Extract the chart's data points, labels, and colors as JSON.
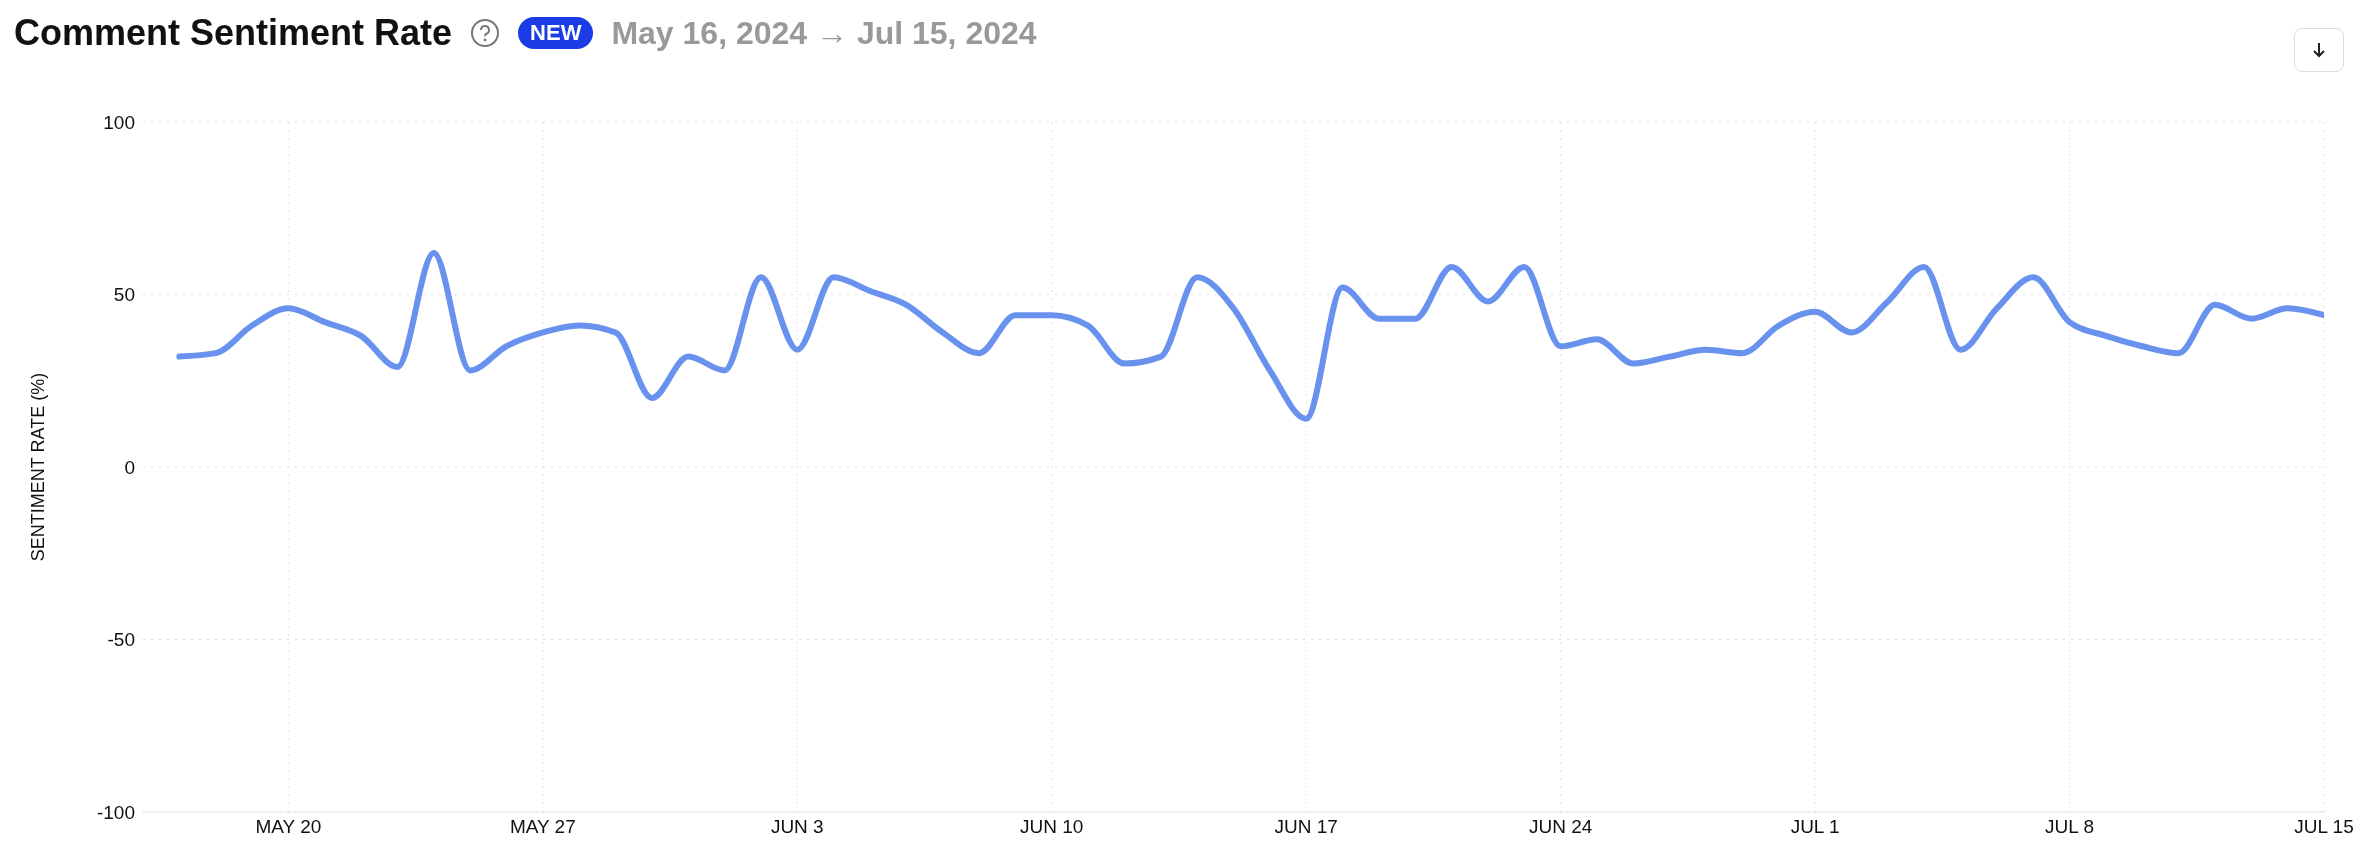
{
  "chart_data": {
    "type": "line",
    "title": "Comment Sentiment Rate",
    "subtitle": "May 16, 2024 → Jul 15, 2024",
    "annotations": [
      "NEW"
    ],
    "ylabel": "SENTIMENT RATE (%)",
    "x": [
      "2024-05-17",
      "2024-05-18",
      "2024-05-19",
      "2024-05-20",
      "2024-05-21",
      "2024-05-22",
      "2024-05-23",
      "2024-05-24",
      "2024-05-25",
      "2024-05-26",
      "2024-05-27",
      "2024-05-28",
      "2024-05-29",
      "2024-05-30",
      "2024-05-31",
      "2024-06-01",
      "2024-06-02",
      "2024-06-03",
      "2024-06-04",
      "2024-06-05",
      "2024-06-06",
      "2024-06-07",
      "2024-06-08",
      "2024-06-09",
      "2024-06-10",
      "2024-06-11",
      "2024-06-12",
      "2024-06-13",
      "2024-06-14",
      "2024-06-15",
      "2024-06-16",
      "2024-06-17",
      "2024-06-18",
      "2024-06-19",
      "2024-06-20",
      "2024-06-21",
      "2024-06-22",
      "2024-06-23",
      "2024-06-24",
      "2024-06-25",
      "2024-06-26",
      "2024-06-27",
      "2024-06-28",
      "2024-06-29",
      "2024-06-30",
      "2024-07-01",
      "2024-07-02",
      "2024-07-03",
      "2024-07-04",
      "2024-07-05",
      "2024-07-06",
      "2024-07-07",
      "2024-07-08",
      "2024-07-09",
      "2024-07-10",
      "2024-07-11",
      "2024-07-12",
      "2024-07-13",
      "2024-07-14",
      "2024-07-15"
    ],
    "series": [
      {
        "color": "#6892ee",
        "values": [
          32,
          33,
          41,
          46,
          42,
          38,
          29,
          62,
          28,
          35,
          39,
          41,
          39,
          20,
          32,
          28,
          55,
          34,
          55,
          51,
          47,
          39,
          33,
          44,
          44,
          41,
          30,
          32,
          55,
          46,
          28,
          14,
          52,
          43,
          43,
          58,
          48,
          58,
          35,
          37,
          30,
          32,
          34,
          33,
          41,
          45,
          39,
          48,
          58,
          34,
          46,
          55,
          42,
          38,
          35,
          33,
          47,
          43,
          46,
          44
        ]
      }
    ],
    "xlim": [
      "2024-05-16",
      "2024-07-15"
    ],
    "xticks": [
      {
        "value": "2024-05-20",
        "label": "MAY 20"
      },
      {
        "value": "2024-05-27",
        "label": "MAY 27"
      },
      {
        "value": "2024-06-03",
        "label": "JUN 3"
      },
      {
        "value": "2024-06-10",
        "label": "JUN 10"
      },
      {
        "value": "2024-06-17",
        "label": "JUN 17"
      },
      {
        "value": "2024-06-24",
        "label": "JUN 24"
      },
      {
        "value": "2024-07-01",
        "label": "JUL 1"
      },
      {
        "value": "2024-07-08",
        "label": "JUL 8"
      },
      {
        "value": "2024-07-15",
        "label": "JUL 15"
      }
    ],
    "ylim": [
      -100,
      100
    ],
    "yticks": [
      -100,
      -50,
      0,
      50,
      100
    ],
    "grid": true,
    "legend": false,
    "marker": "none",
    "line_style": "solid"
  }
}
